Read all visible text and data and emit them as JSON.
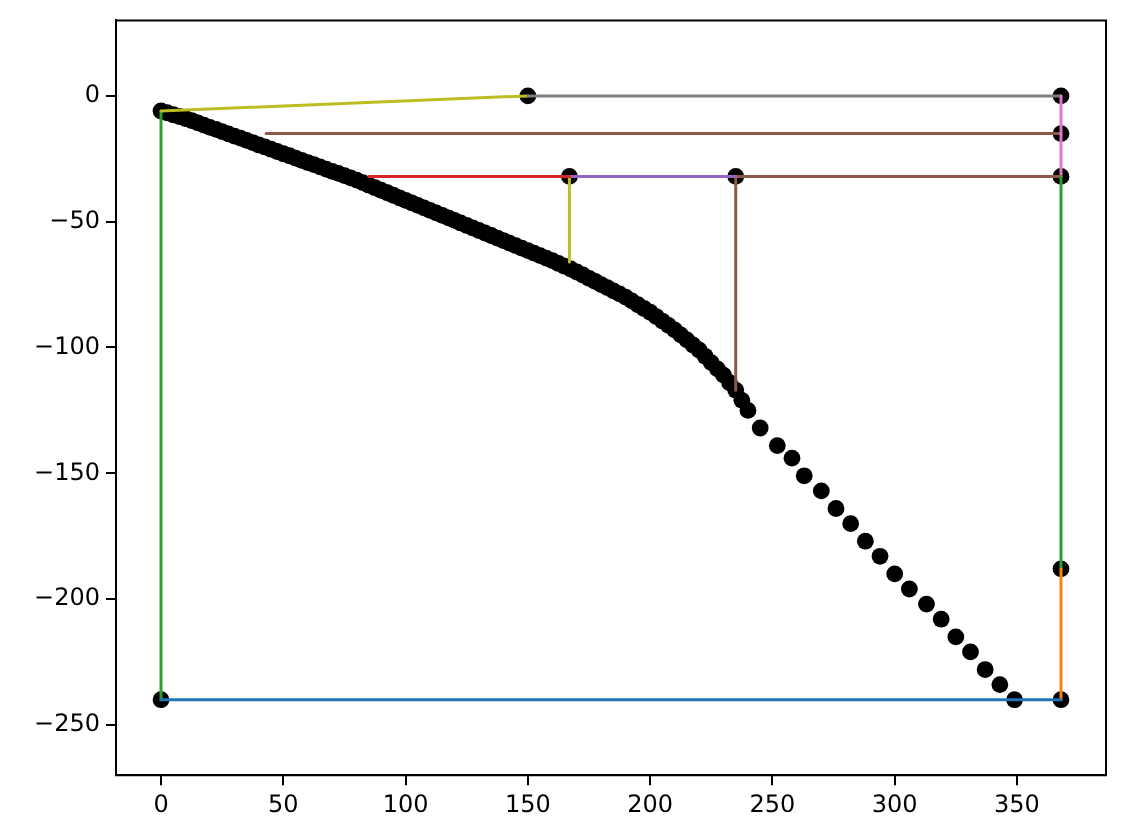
{
  "chart_data": {
    "type": "line",
    "xlim": [
      -18.4,
      386.4
    ],
    "ylim": [
      -270,
      30
    ],
    "xticks": [
      0,
      50,
      100,
      150,
      200,
      250,
      300,
      350
    ],
    "yticks": [
      {
        "value": -250,
        "label": "−250"
      },
      {
        "value": -200,
        "label": "−200"
      },
      {
        "value": -150,
        "label": "−150"
      },
      {
        "value": -100,
        "label": "−100"
      },
      {
        "value": -50,
        "label": "−50"
      },
      0
    ],
    "grid": false,
    "legend": false,
    "line_style": "solid",
    "series": [
      {
        "marker": "none",
        "color": "#1f77b4",
        "x": [
          0,
          368
        ],
        "values": [
          -240,
          -240
        ]
      },
      {
        "marker": "none",
        "color": "#ff7f0e",
        "x": [
          368,
          368
        ],
        "values": [
          -240,
          -188
        ]
      },
      {
        "marker": "none",
        "color": "#2ca02c",
        "x": [
          368,
          368
        ],
        "values": [
          -188,
          -32
        ]
      },
      {
        "marker": "none",
        "color": "#d62728",
        "x": [
          85,
          167
        ],
        "values": [
          -32,
          -32
        ]
      },
      {
        "marker": "none",
        "color": "#9467bd",
        "x": [
          167,
          235
        ],
        "values": [
          -32,
          -32
        ]
      },
      {
        "marker": "none",
        "color": "#8c564b",
        "x": [
          235,
          368
        ],
        "values": [
          -32,
          -32
        ]
      },
      {
        "marker": "none",
        "color": "#e377c2",
        "x": [
          368,
          368
        ],
        "values": [
          -32,
          0
        ]
      },
      {
        "marker": "none",
        "color": "#7f7f7f",
        "x": [
          150,
          368
        ],
        "values": [
          0,
          0
        ]
      },
      {
        "marker": "none",
        "color": "#bcbd22",
        "x": [
          0,
          150
        ],
        "values": [
          -6,
          0
        ]
      },
      {
        "marker": "none",
        "color": "#2ca02c",
        "x": [
          0,
          0
        ],
        "values": [
          -6,
          -240
        ]
      },
      {
        "marker": "none",
        "color": "#8c564b",
        "x": [
          43,
          368
        ],
        "values": [
          -15,
          -15
        ]
      },
      {
        "marker": "none",
        "color": "#8c564b",
        "x": [
          235,
          235
        ],
        "values": [
          -32,
          -117
        ]
      },
      {
        "marker": "none",
        "color": "#bcbd22",
        "x": [
          167,
          167
        ],
        "values": [
          -32,
          -66
        ]
      },
      {
        "type": "scatter",
        "marker": "circle",
        "color": "#000000",
        "x": [
          0,
          2.5,
          5,
          7.5,
          10,
          12.5,
          15,
          17.5,
          20,
          22.5,
          25,
          27.5,
          30,
          32.5,
          35,
          37.5,
          40,
          42.5,
          45,
          47.5,
          50,
          52.5,
          55,
          57.5,
          60,
          62.5,
          65,
          67.5,
          70,
          72.5,
          75,
          77.5,
          80,
          82.5,
          85,
          87.5,
          90,
          92.5,
          95,
          97.5,
          100,
          102.5,
          105,
          107.5,
          110,
          112.5,
          115,
          117.5,
          120,
          122.5,
          125,
          127.5,
          130,
          132.5,
          135,
          137.5,
          140,
          142.5,
          145,
          147.5,
          150,
          152.5,
          155,
          157.5,
          160,
          162.5,
          165,
          167.5,
          170,
          172.5,
          175,
          177.5,
          180,
          182.5,
          185,
          187.5,
          190,
          192.5,
          195,
          197.5,
          200,
          202.5,
          205,
          207.5,
          210,
          212.5,
          215,
          217.5,
          220,
          222.5,
          225,
          227.5,
          230,
          232.5,
          235,
          237.5,
          240,
          245,
          252,
          258,
          263,
          270,
          276,
          282,
          288,
          294,
          300,
          306,
          313,
          319,
          325,
          331,
          337,
          343,
          349
        ],
        "values": [
          -6,
          -6.7,
          -7.5,
          -8.2,
          -9,
          -9.8,
          -10.7,
          -11.6,
          -12.5,
          -13.3,
          -14.2,
          -15.1,
          -16,
          -16.8,
          -17.7,
          -18.6,
          -19.5,
          -20.3,
          -21.2,
          -22.1,
          -23,
          -23.8,
          -24.7,
          -25.6,
          -26.5,
          -27.3,
          -28.2,
          -29.1,
          -30,
          -30.8,
          -31.7,
          -32.6,
          -33.5,
          -34.5,
          -35.5,
          -36.5,
          -37.5,
          -38.5,
          -39.5,
          -40.5,
          -41.5,
          -42.5,
          -43.5,
          -44.5,
          -45.5,
          -46.5,
          -47.5,
          -48.5,
          -49.5,
          -50.5,
          -51.5,
          -52.5,
          -53.5,
          -54.5,
          -55.5,
          -56.5,
          -57.5,
          -58.5,
          -59.5,
          -60.5,
          -61.5,
          -62.5,
          -63.5,
          -64.5,
          -65.5,
          -66.6,
          -67.7,
          -68.8,
          -70,
          -71.2,
          -72.5,
          -73.7,
          -75,
          -76.2,
          -77.5,
          -78.7,
          -80,
          -81.5,
          -83,
          -84.5,
          -86,
          -87.7,
          -89.5,
          -91.2,
          -93,
          -95,
          -97,
          -99,
          -101,
          -103.5,
          -106,
          -108.5,
          -111,
          -114,
          -117,
          -121,
          -125,
          -132,
          -139,
          -144,
          -151,
          -157,
          -164,
          -170,
          -177,
          -183,
          -190,
          -196,
          -202,
          -208,
          -215,
          -221,
          -228,
          -234,
          -240
        ]
      },
      {
        "type": "scatter",
        "marker": "circle",
        "color": "#000000",
        "x": [
          0,
          150,
          368,
          368,
          368,
          368,
          368,
          167,
          235
        ],
        "values": [
          -240,
          0,
          0,
          -15,
          -32,
          -188,
          -240,
          -32,
          -32
        ]
      }
    ]
  }
}
